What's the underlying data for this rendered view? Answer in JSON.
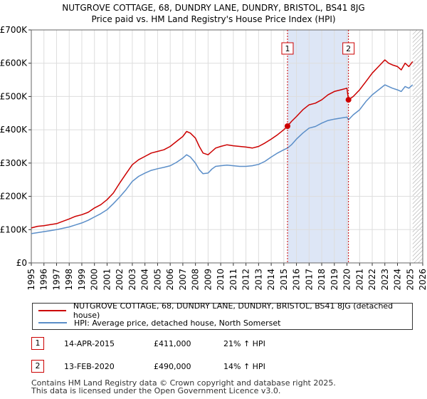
{
  "chart_data": {
    "type": "line",
    "title": "NUTGROVE COTTAGE, 68, DUNDRY LANE, DUNDRY, BRISTOL, BS41 8JG",
    "subtitle": "Price paid vs. HM Land Registry's House Price Index (HPI)",
    "xlabel": "",
    "ylabel": "",
    "xlim": [
      1995.0,
      2026.0
    ],
    "ylim": [
      0,
      700000
    ],
    "x_ticks": [
      1995,
      1996,
      1997,
      1998,
      1999,
      2000,
      2001,
      2002,
      2003,
      2004,
      2005,
      2006,
      2007,
      2008,
      2009,
      2010,
      2011,
      2012,
      2013,
      2014,
      2015,
      2016,
      2017,
      2018,
      2019,
      2020,
      2021,
      2022,
      2023,
      2024,
      2025,
      2026
    ],
    "y_ticks": [
      0,
      100000,
      200000,
      300000,
      400000,
      500000,
      600000,
      700000
    ],
    "y_tick_labels": [
      "£0",
      "£100K",
      "£200K",
      "£300K",
      "£400K",
      "£500K",
      "£600K",
      "£700K"
    ],
    "grid": true,
    "colors": {
      "property": "#cc0000",
      "hpi": "#5b8ec8",
      "shade": "#dde6f6",
      "grid": "#dddddd",
      "hatch": "#999999"
    },
    "hatched_from": 2025.2,
    "shaded_span": [
      2015.29,
      2020.12
    ],
    "series": [
      {
        "name": "NUTGROVE COTTAGE, 68, DUNDRY LANE, DUNDRY, BRISTOL, BS41 8JG (detached house)",
        "color": "#cc0000",
        "x": [
          1995.0,
          1995.5,
          1996.0,
          1996.5,
          1997.0,
          1997.5,
          1998.0,
          1998.5,
          1999.0,
          1999.5,
          2000.0,
          2000.5,
          2001.0,
          2001.5,
          2002.0,
          2002.5,
          2003.0,
          2003.5,
          2004.0,
          2004.5,
          2005.0,
          2005.5,
          2006.0,
          2006.5,
          2007.0,
          2007.3,
          2007.6,
          2008.0,
          2008.3,
          2008.6,
          2009.0,
          2009.3,
          2009.6,
          2010.0,
          2010.5,
          2011.0,
          2011.5,
          2012.0,
          2012.5,
          2013.0,
          2013.5,
          2014.0,
          2014.5,
          2015.0,
          2015.29,
          2015.6,
          2016.0,
          2016.5,
          2017.0,
          2017.5,
          2018.0,
          2018.5,
          2019.0,
          2019.5,
          2020.0,
          2020.12,
          2020.5,
          2021.0,
          2021.5,
          2022.0,
          2022.5,
          2023.0,
          2023.3,
          2023.6,
          2024.0,
          2024.3,
          2024.6,
          2024.9,
          2025.2
        ],
        "y": [
          105000,
          110000,
          112000,
          115000,
          118000,
          125000,
          132000,
          140000,
          145000,
          152000,
          165000,
          175000,
          190000,
          210000,
          240000,
          268000,
          295000,
          310000,
          320000,
          330000,
          335000,
          340000,
          350000,
          365000,
          380000,
          395000,
          390000,
          375000,
          350000,
          330000,
          325000,
          335000,
          345000,
          350000,
          355000,
          352000,
          350000,
          348000,
          345000,
          350000,
          360000,
          372000,
          385000,
          400000,
          411000,
          425000,
          440000,
          460000,
          475000,
          480000,
          490000,
          505000,
          515000,
          520000,
          525000,
          490000,
          500000,
          520000,
          545000,
          570000,
          590000,
          610000,
          600000,
          595000,
          590000,
          580000,
          600000,
          590000,
          605000
        ]
      },
      {
        "name": "HPI: Average price, detached house, North Somerset",
        "color": "#5b8ec8",
        "x": [
          1995.0,
          1995.5,
          1996.0,
          1996.5,
          1997.0,
          1997.5,
          1998.0,
          1998.5,
          1999.0,
          1999.5,
          2000.0,
          2000.5,
          2001.0,
          2001.5,
          2002.0,
          2002.5,
          2003.0,
          2003.5,
          2004.0,
          2004.5,
          2005.0,
          2005.5,
          2006.0,
          2006.5,
          2007.0,
          2007.3,
          2007.6,
          2008.0,
          2008.3,
          2008.6,
          2009.0,
          2009.3,
          2009.6,
          2010.0,
          2010.5,
          2011.0,
          2011.5,
          2012.0,
          2012.5,
          2013.0,
          2013.5,
          2014.0,
          2014.5,
          2015.0,
          2015.29,
          2015.6,
          2016.0,
          2016.5,
          2017.0,
          2017.5,
          2018.0,
          2018.5,
          2019.0,
          2019.5,
          2020.0,
          2020.12,
          2020.5,
          2021.0,
          2021.5,
          2022.0,
          2022.5,
          2023.0,
          2023.3,
          2023.6,
          2024.0,
          2024.3,
          2024.6,
          2024.9,
          2025.2
        ],
        "y": [
          88000,
          91000,
          94000,
          97000,
          100000,
          104000,
          108000,
          114000,
          120000,
          128000,
          138000,
          148000,
          160000,
          178000,
          198000,
          220000,
          245000,
          260000,
          270000,
          278000,
          283000,
          287000,
          292000,
          302000,
          315000,
          325000,
          318000,
          300000,
          280000,
          268000,
          270000,
          282000,
          290000,
          292000,
          294000,
          292000,
          290000,
          290000,
          292000,
          296000,
          305000,
          318000,
          330000,
          340000,
          345000,
          355000,
          372000,
          390000,
          405000,
          410000,
          420000,
          428000,
          432000,
          435000,
          438000,
          430000,
          445000,
          460000,
          485000,
          505000,
          520000,
          535000,
          530000,
          525000,
          520000,
          515000,
          530000,
          525000,
          535000
        ]
      }
    ],
    "sales": [
      {
        "id": "1",
        "x": 2015.29,
        "y": 411000,
        "date": "14-APR-2015",
        "price": "£411,000",
        "change": "21% ↑ HPI"
      },
      {
        "id": "2",
        "x": 2020.12,
        "y": 490000,
        "date": "13-FEB-2020",
        "price": "£490,000",
        "change": "14% ↑ HPI"
      }
    ]
  },
  "legend": {
    "property_label": "NUTGROVE COTTAGE, 68, DUNDRY LANE, DUNDRY, BRISTOL, BS41 8JG (detached house)",
    "hpi_label": "HPI: Average price, detached house, North Somerset"
  },
  "footer": {
    "line1": "Contains HM Land Registry data © Crown copyright and database right 2025.",
    "line2": "This data is licensed under the Open Government Licence v3.0."
  }
}
